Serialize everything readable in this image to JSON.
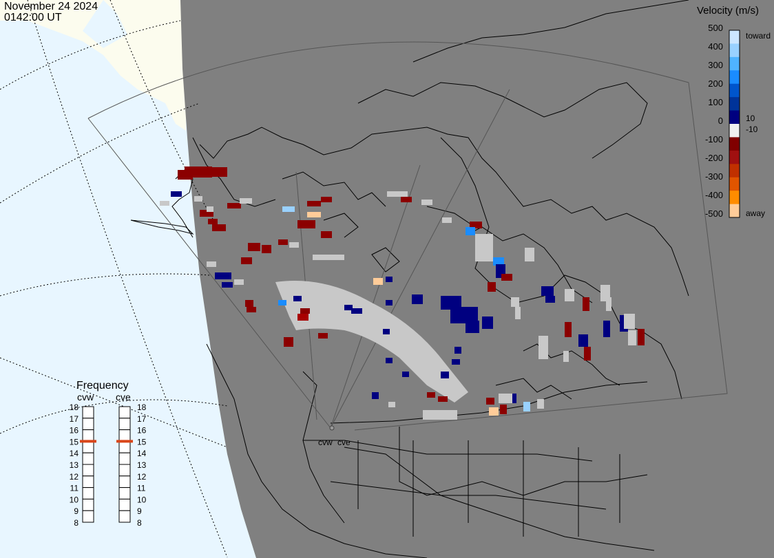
{
  "header": {
    "date": "November 24 2024",
    "time": "0142:00 UT"
  },
  "velocity_legend": {
    "title": "Velocity (m/s)",
    "ticks": [
      "500",
      "400",
      "300",
      "200",
      "100",
      "0",
      "-100",
      "-200",
      "-300",
      "-400",
      "-500"
    ],
    "small_ticks": [
      "10",
      "-10"
    ],
    "toward_label": "toward",
    "away_label": "away",
    "colors": [
      "#cce6ff",
      "#99d1ff",
      "#4fb3ff",
      "#1a8cff",
      "#0055cc",
      "#003399",
      "#000080",
      "#f0f0f0",
      "#800000",
      "#a01010",
      "#c03000",
      "#e05500",
      "#ff8c00",
      "#ffcc99"
    ]
  },
  "frequency_legend": {
    "title": "Frequency",
    "radars": [
      "cvw",
      "cve"
    ],
    "levels": [
      "18",
      "17",
      "16",
      "15",
      "14",
      "13",
      "12",
      "11",
      "10",
      "9",
      "8"
    ],
    "cvw_freq": 15,
    "cve_freq": 15,
    "marker_color": "#d9461a"
  },
  "radar_labels": [
    "cvw",
    "cve"
  ],
  "colors": {
    "night": "#808080",
    "day": "#e8f6ff",
    "land_day": "#fcfcee",
    "scatter_gray": "#c8c8c8"
  }
}
